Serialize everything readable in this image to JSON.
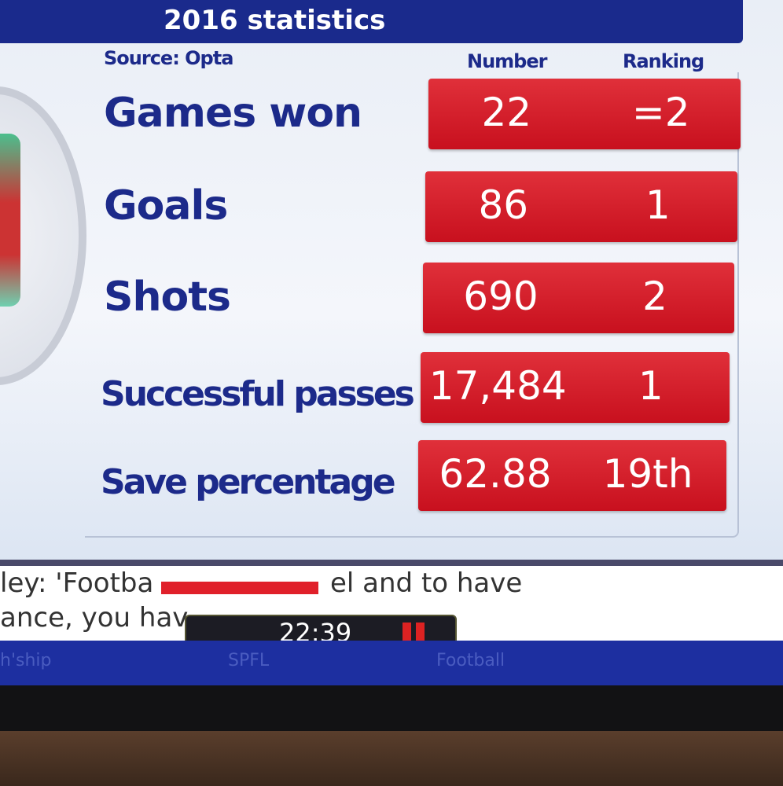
{
  "header": {
    "title": "2016 statistics",
    "source": "Source: Opta"
  },
  "table": {
    "columns": [
      "Number",
      "Ranking"
    ],
    "rows": [
      [
        "Games won",
        "22",
        "=2"
      ],
      [
        "Goals",
        "86",
        "1"
      ],
      [
        "Shots",
        "690",
        "2"
      ],
      [
        "Successful passes",
        "17,484",
        "1"
      ],
      [
        "Save percentage",
        "62.88",
        "19th"
      ]
    ]
  },
  "ticker": {
    "lines": [
      "ley: 'Footba",
      "el and to have",
      "ance, you hav"
    ],
    "time": "22:39",
    "tabs": [
      "h'ship",
      "SPFL",
      "Football"
    ]
  }
}
